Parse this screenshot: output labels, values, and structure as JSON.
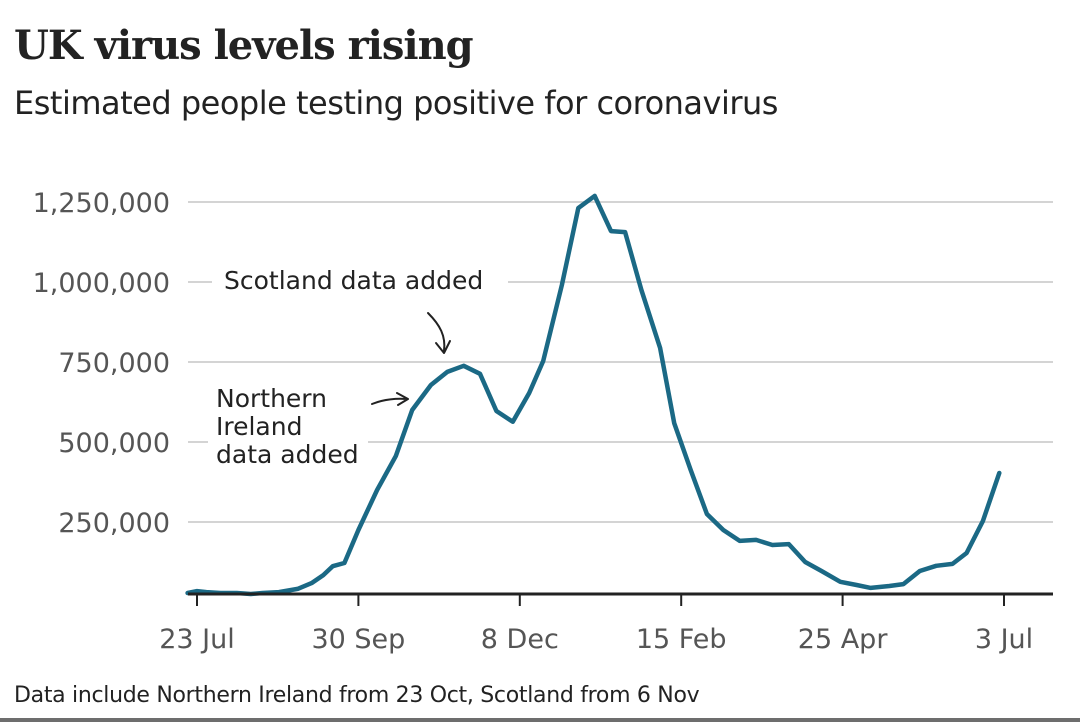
{
  "title": "UK virus levels rising",
  "subtitle": "Estimated people testing positive for coronavirus",
  "footer": "Data include Northern Ireland from 23 Oct, Scotland from 6 Nov",
  "colors": {
    "line": "#1b6985",
    "text": "#222222",
    "axis_text": "#555555",
    "grid": "#d4d4d4",
    "axis": "#222222"
  },
  "chart_data": {
    "type": "line",
    "title": "UK virus levels rising",
    "subtitle": "Estimated people testing positive for coronavirus",
    "xlabel": "",
    "ylabel": "",
    "x_unit": "days since 23 Jul",
    "ylim": [
      25000,
      1300000
    ],
    "xlim": [
      -4,
      364
    ],
    "grid": true,
    "legend": "none",
    "y_ticks": [
      {
        "value": 250000,
        "label": "250,000"
      },
      {
        "value": 500000,
        "label": "500,000"
      },
      {
        "value": 750000,
        "label": "750,000"
      },
      {
        "value": 1000000,
        "label": "1,000,000"
      },
      {
        "value": 1250000,
        "label": "1,250,000"
      }
    ],
    "x_ticks": [
      {
        "value": 0,
        "label": "23 Jul"
      },
      {
        "value": 69,
        "label": "30 Sep"
      },
      {
        "value": 138,
        "label": "8 Dec"
      },
      {
        "value": 207,
        "label": "15 Feb"
      },
      {
        "value": 276,
        "label": "25 Apr"
      },
      {
        "value": 345,
        "label": "3 Jul"
      }
    ],
    "series": [
      {
        "name": "Estimated people testing positive",
        "x": [
          -4,
          0,
          4,
          10,
          17,
          23,
          28,
          35,
          43,
          49,
          54,
          58,
          63,
          69,
          77,
          85,
          92,
          100,
          107,
          114,
          121,
          128,
          135,
          142,
          148,
          156,
          163,
          170,
          177,
          183,
          190,
          198,
          204,
          211,
          218,
          225,
          232,
          239,
          246,
          253,
          260,
          267,
          275,
          282,
          288,
          296,
          302,
          309,
          316,
          323,
          329,
          336,
          343
        ],
        "values": [
          28000,
          34000,
          31000,
          28000,
          28000,
          25000,
          28000,
          31000,
          41000,
          59000,
          84000,
          112000,
          122000,
          225000,
          350000,
          456000,
          600000,
          678000,
          719000,
          738000,
          713000,
          597000,
          563000,
          653000,
          753000,
          991000,
          1231000,
          1269000,
          1159000,
          1156000,
          975000,
          794000,
          559000,
          413000,
          275000,
          225000,
          191000,
          194000,
          178000,
          181000,
          125000,
          97000,
          63000,
          53000,
          44000,
          50000,
          56000,
          97000,
          113000,
          119000,
          153000,
          253000,
          403000
        ]
      }
    ],
    "annotations": [
      {
        "text": "Scotland data added",
        "x": 114,
        "note": "arrow pointing down to curve near mid-Nov"
      },
      {
        "text": "Northern Ireland data added",
        "lines": [
          "Northern",
          "Ireland",
          "data added"
        ],
        "x": 92,
        "note": "arrow pointing right to curve near late Oct"
      }
    ]
  }
}
